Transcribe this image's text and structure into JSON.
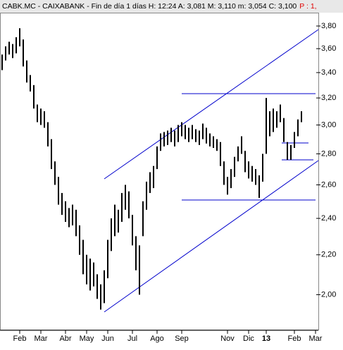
{
  "chart_data": {
    "type": "range",
    "title": "CABK.MC - CAIXABANK - Fin de día 1 días  H: 12:24  A: 3,081  M: 3,110  m: 3,054  C: 3,100",
    "title_extra": "P : 1,",
    "log_scale": true,
    "color": "#000000",
    "categories": [
      null,
      null,
      null,
      null,
      null,
      "Feb",
      null,
      null,
      null,
      null,
      null,
      "Mar",
      null,
      null,
      null,
      null,
      null,
      null,
      "Abr",
      null,
      null,
      null,
      null,
      null,
      "May",
      null,
      null,
      null,
      null,
      null,
      "Jun",
      null,
      null,
      null,
      null,
      null,
      null,
      "Jul",
      null,
      null,
      null,
      null,
      null,
      null,
      "Ago",
      null,
      null,
      null,
      null,
      null,
      null,
      "Sep",
      null,
      null,
      null,
      null,
      null,
      null,
      null,
      null,
      null,
      null,
      null,
      null,
      "Nov",
      null,
      null,
      null,
      null,
      null,
      "Dic",
      null,
      null,
      null,
      null,
      "13",
      null,
      null,
      null,
      null,
      null,
      null,
      null,
      "Feb",
      null,
      null,
      null,
      null,
      null,
      "Mar"
    ],
    "series": [
      {
        "name": "high",
        "values": [
          3.55,
          3.62,
          3.66,
          3.64,
          3.7,
          3.78,
          3.68,
          3.5,
          3.38,
          3.3,
          3.15,
          3.12,
          3.1,
          3.02,
          2.9,
          2.75,
          2.65,
          2.55,
          2.5,
          2.46,
          2.48,
          2.45,
          2.36,
          2.28,
          2.2,
          2.18,
          2.16,
          2.1,
          2.05,
          2.12,
          2.28,
          2.4,
          2.48,
          2.45,
          2.55,
          2.6,
          2.56,
          2.42,
          2.3,
          2.25,
          2.5,
          2.62,
          2.68,
          2.72,
          2.85,
          2.94,
          2.95,
          2.96,
          2.98,
          2.96,
          3.0,
          3.02,
          3.0,
          2.98,
          3.0,
          2.97,
          2.96,
          3.01,
          2.98,
          2.94,
          2.92,
          2.9,
          2.88,
          2.75,
          2.65,
          2.7,
          2.78,
          2.85,
          2.92,
          2.82,
          2.75,
          2.72,
          2.7,
          2.66,
          2.8,
          3.2,
          3.1,
          3.12,
          3.1,
          3.15,
          3.05,
          2.88,
          2.86,
          2.95,
          3.04,
          3.1,
          null,
          null,
          null,
          null
        ]
      },
      {
        "name": "low",
        "values": [
          3.42,
          3.5,
          3.55,
          3.52,
          3.56,
          3.62,
          3.45,
          3.32,
          3.25,
          3.12,
          3.02,
          3.0,
          2.98,
          2.85,
          2.7,
          2.6,
          2.48,
          2.42,
          2.38,
          2.35,
          2.36,
          2.3,
          2.2,
          2.1,
          2.05,
          2.02,
          2.04,
          1.98,
          1.93,
          1.96,
          2.08,
          2.22,
          2.3,
          2.32,
          2.38,
          2.45,
          2.4,
          2.25,
          2.12,
          2.0,
          2.3,
          2.45,
          2.55,
          2.58,
          2.7,
          2.82,
          2.85,
          2.86,
          2.88,
          2.85,
          2.88,
          2.92,
          2.9,
          2.88,
          2.9,
          2.88,
          2.86,
          2.9,
          2.87,
          2.85,
          2.84,
          2.82,
          2.72,
          2.6,
          2.54,
          2.58,
          2.65,
          2.75,
          2.8,
          2.68,
          2.64,
          2.62,
          2.6,
          2.52,
          2.62,
          2.8,
          2.92,
          2.95,
          2.98,
          3.02,
          2.88,
          2.76,
          2.76,
          2.84,
          2.92,
          3.02,
          null,
          null,
          null,
          null
        ]
      }
    ],
    "ylim": [
      1.84,
      3.91
    ],
    "yticks": [
      {
        "value": 2.0,
        "label": "2,00"
      },
      {
        "value": 2.2,
        "label": "2,20"
      },
      {
        "value": 2.4,
        "label": "2,40"
      },
      {
        "value": 2.6,
        "label": "2,60"
      },
      {
        "value": 2.8,
        "label": "2,80"
      },
      {
        "value": 3.0,
        "label": "3,00"
      },
      {
        "value": 3.2,
        "label": "3,20"
      },
      {
        "value": 3.4,
        "label": "3,40"
      },
      {
        "value": 3.6,
        "label": "3,60"
      },
      {
        "value": 3.8,
        "label": "3,80"
      }
    ]
  }
}
